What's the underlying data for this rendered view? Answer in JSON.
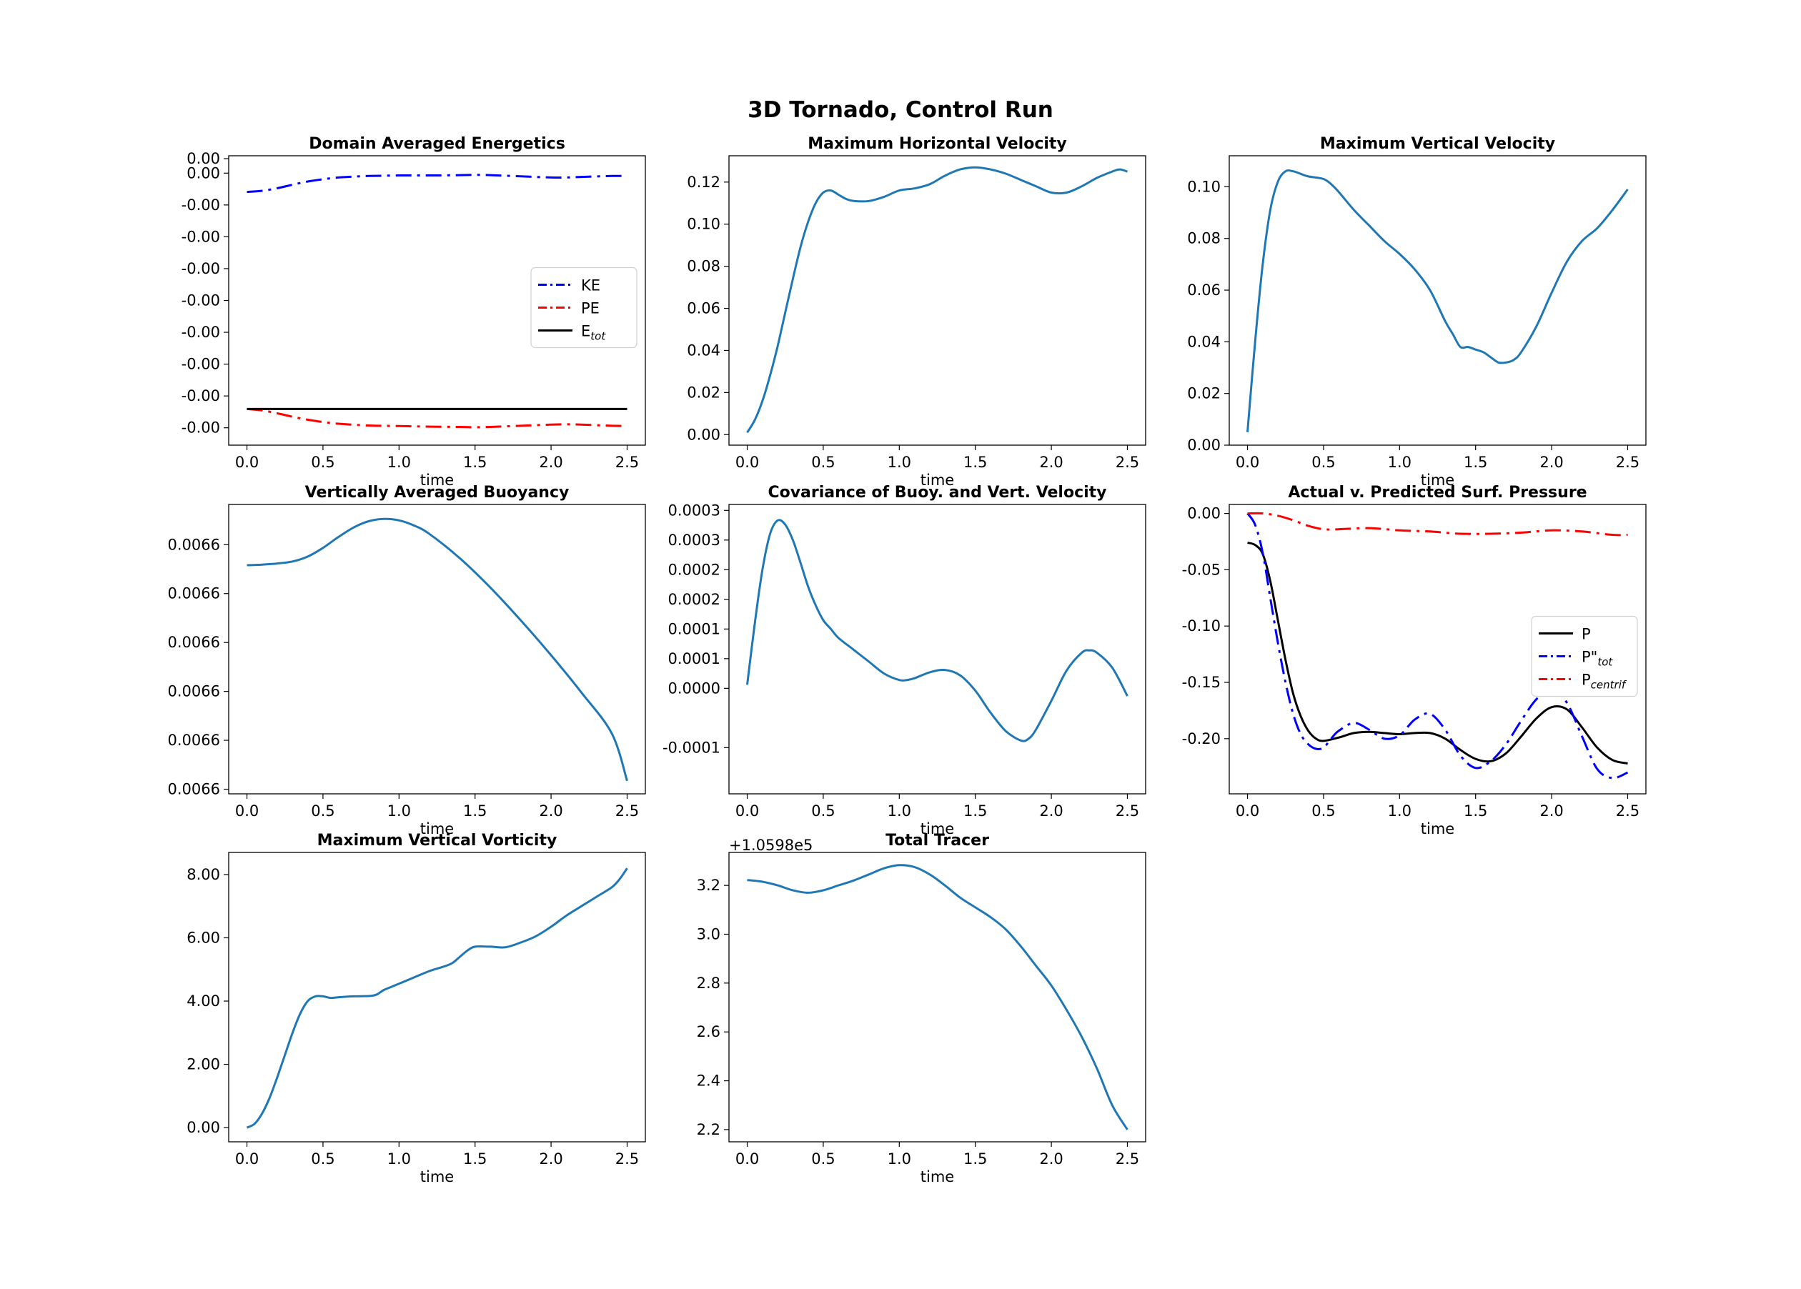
{
  "figure": {
    "title": "3D Tornado, Control Run"
  },
  "chart_data": [
    {
      "type": "line",
      "title": "Domain Averaged Energetics",
      "xlabel": "time",
      "ylabel": "",
      "xlim": [
        -0.12,
        2.62
      ],
      "ylim": [
        0.0,
        1.0
      ],
      "xticks": [
        0.0,
        0.5,
        1.0,
        1.5,
        2.0,
        2.5
      ],
      "xticklabels": [
        "0.0",
        "0.5",
        "1.0",
        "1.5",
        "2.0",
        "2.5"
      ],
      "yticks": [
        0.06,
        0.17,
        0.28,
        0.39,
        0.5,
        0.61,
        0.72,
        0.83,
        0.94,
        0.99
      ],
      "yticks_note": "tick labels printed by the figure are all rounded to 0.00",
      "yticklabels": [
        "-0.00",
        "-0.00",
        "-0.00",
        "-0.00",
        "-0.00",
        "-0.00",
        "-0.00",
        "-0.00",
        "0.00",
        "0.00"
      ],
      "legend": "center-right",
      "series": [
        {
          "name": "KE",
          "color": "#0000ff",
          "dash": "dashdot",
          "x": [
            0,
            0.1,
            0.2,
            0.3,
            0.4,
            0.5,
            0.6,
            0.7,
            0.8,
            1.0,
            1.2,
            1.4,
            1.5,
            1.6,
            1.8,
            2.0,
            2.1,
            2.2,
            2.4,
            2.5
          ],
          "y": [
            0.875,
            0.879,
            0.888,
            0.9,
            0.911,
            0.919,
            0.925,
            0.928,
            0.93,
            0.932,
            0.932,
            0.933,
            0.934,
            0.933,
            0.929,
            0.925,
            0.925,
            0.927,
            0.93,
            0.93
          ]
        },
        {
          "name": "PE",
          "color": "#ff0000",
          "dash": "dashdot",
          "x": [
            0,
            0.1,
            0.2,
            0.3,
            0.4,
            0.5,
            0.6,
            0.8,
            1.0,
            1.2,
            1.4,
            1.5,
            1.6,
            1.8,
            2.0,
            2.1,
            2.2,
            2.4,
            2.5
          ],
          "y": [
            0.125,
            0.12,
            0.11,
            0.098,
            0.088,
            0.08,
            0.074,
            0.068,
            0.066,
            0.064,
            0.063,
            0.062,
            0.063,
            0.067,
            0.071,
            0.072,
            0.071,
            0.067,
            0.066
          ]
        },
        {
          "name": "E_tot",
          "label_main": "E",
          "label_sub": "tot",
          "color": "#000000",
          "dash": "solid",
          "x": [
            0,
            2.5
          ],
          "y": [
            0.125,
            0.125
          ]
        }
      ]
    },
    {
      "type": "line",
      "title": "Maximum Horizontal Velocity",
      "xlabel": "time",
      "ylabel": "",
      "xlim": [
        -0.12,
        2.62
      ],
      "ylim": [
        -0.005,
        0.1325
      ],
      "xticks": [
        0.0,
        0.5,
        1.0,
        1.5,
        2.0,
        2.5
      ],
      "xticklabels": [
        "0.0",
        "0.5",
        "1.0",
        "1.5",
        "2.0",
        "2.5"
      ],
      "yticks": [
        0.0,
        0.02,
        0.04,
        0.06,
        0.08,
        0.1,
        0.12
      ],
      "yticklabels": [
        "0.00",
        "0.02",
        "0.04",
        "0.06",
        "0.08",
        "0.10",
        "0.12"
      ],
      "series": [
        {
          "name": "",
          "color": "#1f77b4",
          "dash": "solid",
          "x": [
            0,
            0.05,
            0.1,
            0.15,
            0.2,
            0.25,
            0.3,
            0.35,
            0.4,
            0.45,
            0.5,
            0.55,
            0.6,
            0.65,
            0.7,
            0.8,
            0.9,
            1.0,
            1.1,
            1.2,
            1.3,
            1.4,
            1.5,
            1.6,
            1.7,
            1.8,
            1.9,
            2.0,
            2.1,
            2.2,
            2.3,
            2.4,
            2.45,
            2.5
          ],
          "y": [
            0.001,
            0.007,
            0.016,
            0.028,
            0.042,
            0.058,
            0.074,
            0.089,
            0.101,
            0.11,
            0.115,
            0.116,
            0.114,
            0.112,
            0.111,
            0.111,
            0.113,
            0.116,
            0.117,
            0.119,
            0.123,
            0.126,
            0.127,
            0.126,
            0.124,
            0.121,
            0.118,
            0.115,
            0.115,
            0.118,
            0.122,
            0.125,
            0.126,
            0.125
          ]
        }
      ]
    },
    {
      "type": "line",
      "title": "Maximum Vertical Velocity",
      "xlabel": "time",
      "ylabel": "",
      "xlim": [
        -0.12,
        2.62
      ],
      "ylim": [
        0.0,
        0.112
      ],
      "xticks": [
        0.0,
        0.5,
        1.0,
        1.5,
        2.0,
        2.5
      ],
      "xticklabels": [
        "0.0",
        "0.5",
        "1.0",
        "1.5",
        "2.0",
        "2.5"
      ],
      "yticks": [
        0.0,
        0.02,
        0.04,
        0.06,
        0.08,
        0.1
      ],
      "yticklabels": [
        "0.00",
        "0.02",
        "0.04",
        "0.06",
        "0.08",
        "0.10"
      ],
      "series": [
        {
          "name": "",
          "color": "#1f77b4",
          "dash": "solid",
          "x": [
            0,
            0.05,
            0.1,
            0.15,
            0.2,
            0.25,
            0.3,
            0.35,
            0.4,
            0.5,
            0.55,
            0.6,
            0.7,
            0.8,
            0.9,
            1.0,
            1.1,
            1.2,
            1.3,
            1.35,
            1.4,
            1.45,
            1.5,
            1.55,
            1.6,
            1.65,
            1.7,
            1.75,
            1.8,
            1.9,
            2.0,
            2.1,
            2.2,
            2.3,
            2.4,
            2.5
          ],
          "y": [
            0.005,
            0.04,
            0.07,
            0.091,
            0.102,
            0.106,
            0.106,
            0.105,
            0.104,
            0.103,
            0.101,
            0.098,
            0.091,
            0.085,
            0.079,
            0.074,
            0.068,
            0.06,
            0.048,
            0.043,
            0.038,
            0.038,
            0.037,
            0.036,
            0.034,
            0.032,
            0.032,
            0.033,
            0.036,
            0.046,
            0.059,
            0.071,
            0.079,
            0.084,
            0.091,
            0.099
          ]
        }
      ]
    },
    {
      "type": "line",
      "title": "Vertically Averaged Buoyancy",
      "xlabel": "time",
      "ylabel": "",
      "xlim": [
        -0.12,
        2.62
      ],
      "ylim": [
        0.0,
        1.0
      ],
      "xticks": [
        0.0,
        0.5,
        1.0,
        1.5,
        2.0,
        2.5
      ],
      "xticklabels": [
        "0.0",
        "0.5",
        "1.0",
        "1.5",
        "2.0",
        "2.5"
      ],
      "yticks": [
        0.016,
        0.185,
        0.354,
        0.523,
        0.692,
        0.861
      ],
      "yticks_note": "tick labels printed by the figure are all rounded to 0.0066",
      "yticklabels": [
        "0.0066",
        "0.0066",
        "0.0066",
        "0.0066",
        "0.0066",
        "0.0066"
      ],
      "series": [
        {
          "name": "",
          "color": "#1f77b4",
          "dash": "solid",
          "x": [
            0,
            0.1,
            0.2,
            0.3,
            0.4,
            0.5,
            0.6,
            0.7,
            0.8,
            0.9,
            1.0,
            1.1,
            1.2,
            1.4,
            1.6,
            1.8,
            2.0,
            2.2,
            2.4,
            2.5
          ],
          "y": [
            0.79,
            0.792,
            0.796,
            0.803,
            0.82,
            0.85,
            0.887,
            0.92,
            0.942,
            0.95,
            0.945,
            0.927,
            0.898,
            0.814,
            0.713,
            0.6,
            0.479,
            0.35,
            0.208,
            0.045
          ]
        }
      ]
    },
    {
      "type": "line",
      "title": "Covariance of Buoy. and Vert. Velocity",
      "xlabel": "time",
      "ylabel": "",
      "xlim": [
        -0.12,
        2.62
      ],
      "ylim": [
        -0.0001779,
        0.00031
      ],
      "xticks": [
        0.0,
        0.5,
        1.0,
        1.5,
        2.0,
        2.5
      ],
      "xticklabels": [
        "0.0",
        "0.5",
        "1.0",
        "1.5",
        "2.0",
        "2.5"
      ],
      "yticks": [
        -0.0001,
        0.0,
        5e-05,
        0.0001,
        0.00015,
        0.0002,
        0.00025,
        0.0003
      ],
      "yticklabels": [
        "-0.0001",
        "0.0000",
        "0.0001",
        "0.0001",
        "0.0002",
        "0.0002",
        "0.0003",
        "0.0003"
      ],
      "series": [
        {
          "name": "",
          "color": "#1f77b4",
          "dash": "solid",
          "x": [
            0,
            0.05,
            0.1,
            0.15,
            0.2,
            0.25,
            0.3,
            0.35,
            0.4,
            0.45,
            0.5,
            0.55,
            0.6,
            0.7,
            0.8,
            0.9,
            1.0,
            1.05,
            1.1,
            1.2,
            1.3,
            1.4,
            1.5,
            1.6,
            1.7,
            1.8,
            1.85,
            1.9,
            2.0,
            2.1,
            2.2,
            2.25,
            2.3,
            2.4,
            2.5
          ],
          "y": [
            6e-06,
            0.00011,
            0.0002,
            0.00026,
            0.000283,
            0.000276,
            0.00025,
            0.000212,
            0.000172,
            0.00014,
            0.000115,
            0.0001,
            8.5e-05,
            6.5e-05,
            4.5e-05,
            2.5e-05,
            1.4e-05,
            1.4e-05,
            1.7e-05,
            2.7e-05,
            3.1e-05,
            2.2e-05,
            -4e-06,
            -4.1e-05,
            -7.2e-05,
            -8.8e-05,
            -8.5e-05,
            -6.9e-05,
            -2.1e-05,
            3e-05,
            6e-05,
            6.4e-05,
            6e-05,
            3.5e-05,
            -1.3e-05
          ]
        }
      ]
    },
    {
      "type": "line",
      "title": "Actual v. Predicted Surf. Pressure",
      "xlabel": "time",
      "ylabel": "",
      "xlim": [
        -0.12,
        2.62
      ],
      "ylim": [
        -0.249,
        0.008
      ],
      "xticks": [
        0.0,
        0.5,
        1.0,
        1.5,
        2.0,
        2.5
      ],
      "xticklabels": [
        "0.0",
        "0.5",
        "1.0",
        "1.5",
        "2.0",
        "2.5"
      ],
      "yticks": [
        -0.2,
        -0.15,
        -0.1,
        -0.05,
        0.0
      ],
      "yticklabels": [
        "-0.20",
        "-0.15",
        "-0.10",
        "-0.05",
        "0.00"
      ],
      "legend": "center-right",
      "series": [
        {
          "name": "P",
          "label_main": "P",
          "label_sub": "",
          "color": "#000000",
          "dash": "solid",
          "x": [
            0,
            0.05,
            0.1,
            0.15,
            0.2,
            0.25,
            0.3,
            0.35,
            0.4,
            0.45,
            0.5,
            0.6,
            0.7,
            0.8,
            0.9,
            1.0,
            1.1,
            1.2,
            1.3,
            1.4,
            1.5,
            1.6,
            1.7,
            1.8,
            1.9,
            2.0,
            2.1,
            2.2,
            2.3,
            2.4,
            2.5
          ],
          "y": [
            -0.026,
            -0.028,
            -0.036,
            -0.06,
            -0.095,
            -0.13,
            -0.16,
            -0.18,
            -0.193,
            -0.2,
            -0.202,
            -0.199,
            -0.195,
            -0.194,
            -0.195,
            -0.196,
            -0.195,
            -0.195,
            -0.2,
            -0.21,
            -0.218,
            -0.22,
            -0.213,
            -0.198,
            -0.182,
            -0.172,
            -0.174,
            -0.19,
            -0.208,
            -0.219,
            -0.222
          ]
        },
        {
          "name": "P\"_tot",
          "label_main": "P\"",
          "label_sub": "tot",
          "color": "#0000ff",
          "dash": "dashdot",
          "x": [
            0,
            0.05,
            0.1,
            0.15,
            0.2,
            0.25,
            0.3,
            0.35,
            0.4,
            0.45,
            0.5,
            0.55,
            0.6,
            0.7,
            0.8,
            0.9,
            1.0,
            1.1,
            1.2,
            1.3,
            1.4,
            1.5,
            1.6,
            1.7,
            1.8,
            1.9,
            2.0,
            2.1,
            2.2,
            2.3,
            2.4,
            2.5
          ],
          "y": [
            0.0,
            -0.01,
            -0.035,
            -0.075,
            -0.115,
            -0.15,
            -0.178,
            -0.196,
            -0.205,
            -0.209,
            -0.208,
            -0.2,
            -0.193,
            -0.186,
            -0.192,
            -0.2,
            -0.197,
            -0.183,
            -0.178,
            -0.192,
            -0.215,
            -0.226,
            -0.22,
            -0.205,
            -0.184,
            -0.165,
            -0.156,
            -0.168,
            -0.198,
            -0.227,
            -0.235,
            -0.23
          ]
        },
        {
          "name": "P_centrif",
          "label_main": "P",
          "label_sub": "centrif",
          "color": "#ff0000",
          "dash": "dashdot",
          "x": [
            0,
            0.1,
            0.2,
            0.3,
            0.4,
            0.5,
            0.6,
            0.8,
            1.0,
            1.2,
            1.4,
            1.6,
            1.8,
            2.0,
            2.2,
            2.4,
            2.5
          ],
          "y": [
            0.0,
            0.0,
            -0.002,
            -0.006,
            -0.011,
            -0.014,
            -0.014,
            -0.013,
            -0.015,
            -0.016,
            -0.018,
            -0.018,
            -0.017,
            -0.015,
            -0.016,
            -0.019,
            -0.019
          ]
        }
      ]
    },
    {
      "type": "line",
      "title": "Maximum Vertical Vorticity",
      "xlabel": "time",
      "ylabel": "",
      "xlim": [
        -0.12,
        2.62
      ],
      "ylim": [
        -0.45,
        8.7
      ],
      "xticks": [
        0.0,
        0.5,
        1.0,
        1.5,
        2.0,
        2.5
      ],
      "xticklabels": [
        "0.0",
        "0.5",
        "1.0",
        "1.5",
        "2.0",
        "2.5"
      ],
      "yticks": [
        0.0,
        2.0,
        4.0,
        6.0,
        8.0
      ],
      "yticklabels": [
        "0.00",
        "2.00",
        "4.00",
        "6.00",
        "8.00"
      ],
      "series": [
        {
          "name": "",
          "color": "#1f77b4",
          "dash": "solid",
          "x": [
            0,
            0.05,
            0.1,
            0.15,
            0.2,
            0.25,
            0.3,
            0.35,
            0.4,
            0.45,
            0.5,
            0.55,
            0.6,
            0.7,
            0.8,
            0.85,
            0.9,
            0.95,
            1.0,
            1.1,
            1.2,
            1.3,
            1.35,
            1.4,
            1.45,
            1.5,
            1.6,
            1.7,
            1.8,
            1.9,
            2.0,
            2.1,
            2.2,
            2.3,
            2.4,
            2.45,
            2.5
          ],
          "y": [
            0.0,
            0.12,
            0.45,
            0.95,
            1.6,
            2.3,
            3.0,
            3.6,
            4.0,
            4.15,
            4.15,
            4.1,
            4.12,
            4.15,
            4.16,
            4.2,
            4.35,
            4.45,
            4.55,
            4.75,
            4.95,
            5.1,
            5.2,
            5.4,
            5.6,
            5.72,
            5.72,
            5.7,
            5.85,
            6.05,
            6.35,
            6.7,
            7.0,
            7.3,
            7.6,
            7.85,
            8.2
          ]
        }
      ]
    },
    {
      "type": "line",
      "title": "Total Tracer",
      "xlabel": "time",
      "ylabel": "",
      "offset_text": "+1.0598e5",
      "xlim": [
        -0.12,
        2.62
      ],
      "ylim": [
        2.15,
        3.335
      ],
      "xticks": [
        0.0,
        0.5,
        1.0,
        1.5,
        2.0,
        2.5
      ],
      "xticklabels": [
        "0.0",
        "0.5",
        "1.0",
        "1.5",
        "2.0",
        "2.5"
      ],
      "yticks": [
        2.2,
        2.4,
        2.6,
        2.8,
        3.0,
        3.2
      ],
      "yticklabels": [
        "2.2",
        "2.4",
        "2.6",
        "2.8",
        "3.0",
        "3.2"
      ],
      "series": [
        {
          "name": "",
          "color": "#1f77b4",
          "dash": "solid",
          "x": [
            0,
            0.1,
            0.2,
            0.3,
            0.4,
            0.5,
            0.6,
            0.7,
            0.8,
            0.9,
            1.0,
            1.1,
            1.2,
            1.3,
            1.4,
            1.5,
            1.6,
            1.7,
            1.8,
            1.9,
            2.0,
            2.1,
            2.2,
            2.3,
            2.4,
            2.5
          ],
          "y": [
            3.222,
            3.215,
            3.2,
            3.18,
            3.17,
            3.18,
            3.2,
            3.22,
            3.245,
            3.27,
            3.283,
            3.275,
            3.245,
            3.2,
            3.15,
            3.11,
            3.07,
            3.02,
            2.95,
            2.87,
            2.79,
            2.69,
            2.58,
            2.45,
            2.3,
            2.2
          ]
        }
      ]
    }
  ]
}
